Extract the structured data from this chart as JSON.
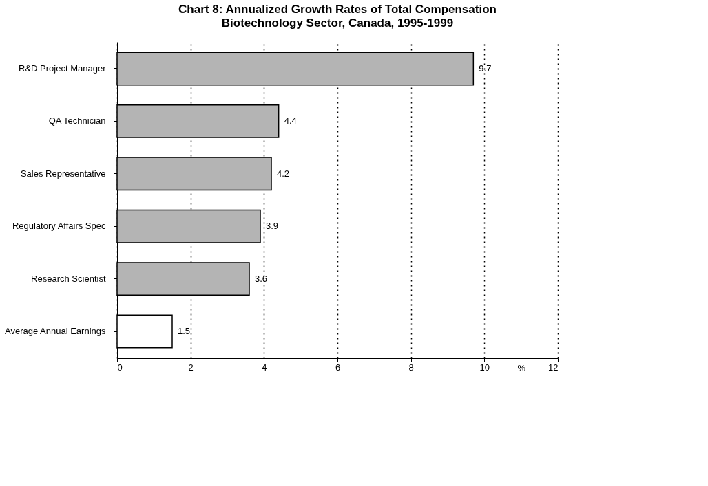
{
  "chart_data": {
    "type": "bar",
    "orientation": "horizontal",
    "title": "Chart 8: Annualized Growth Rates of Total Compensation",
    "subtitle": "Biotechnology Sector, Canada, 1995-1999",
    "categories": [
      "R&D Project Manager",
      "QA Technician",
      "Sales Representative",
      "Regulatory Affairs Spec",
      "Research Scientist",
      "Average Annual Earnings"
    ],
    "values": [
      9.7,
      4.4,
      4.2,
      3.9,
      3.6,
      1.5
    ],
    "colors": [
      "#b4b4b4",
      "#b4b4b4",
      "#b4b4b4",
      "#b4b4b4",
      "#b4b4b4",
      "#ffffff"
    ],
    "xlabel": "%",
    "xlim": [
      0,
      12
    ],
    "xticks": [
      0,
      2,
      4,
      6,
      8,
      10,
      12
    ],
    "grid": "x",
    "data_labels": true
  }
}
